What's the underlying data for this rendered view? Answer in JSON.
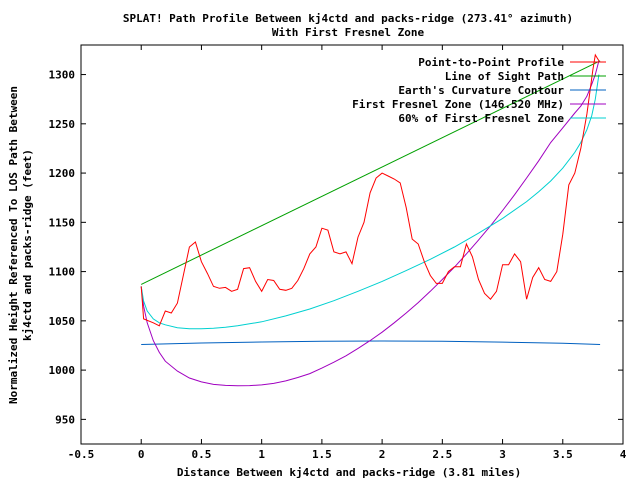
{
  "chart_data": {
    "type": "line",
    "title": "SPLAT! Path Profile Between kj4ctd and packs-ridge (273.41° azimuth)",
    "subtitle": "With First Fresnel Zone",
    "xlabel": "Distance Between kj4ctd and packs-ridge (3.81 miles)",
    "ylabel_line1": "Normalized Height Referenced To LOS Path Between",
    "ylabel_line2": "kj4ctd and packs-ridge (feet)",
    "xlim": [
      -0.5,
      4
    ],
    "ylim": [
      925,
      1330
    ],
    "x_ticks": [
      -0.5,
      0,
      0.5,
      1,
      1.5,
      2,
      2.5,
      3,
      3.5,
      4
    ],
    "x_tick_labels": [
      "-0.5",
      "0",
      "0.5",
      "1",
      "1.5",
      "2",
      "2.5",
      "3",
      "3.5",
      "4"
    ],
    "y_ticks": [
      950,
      1000,
      1050,
      1100,
      1150,
      1200,
      1250,
      1300
    ],
    "y_tick_labels": [
      "950",
      "1000",
      "1050",
      "1100",
      "1150",
      "1200",
      "1250",
      "1300"
    ],
    "grid": false,
    "legend_position": "top-right",
    "series": [
      {
        "name": "Point-to-Point Profile",
        "color": "#ff0000",
        "x": [
          0,
          0.02,
          0.1,
          0.15,
          0.2,
          0.25,
          0.3,
          0.4,
          0.45,
          0.5,
          0.55,
          0.6,
          0.65,
          0.7,
          0.75,
          0.8,
          0.85,
          0.9,
          0.95,
          1.0,
          1.05,
          1.1,
          1.15,
          1.2,
          1.25,
          1.3,
          1.35,
          1.4,
          1.45,
          1.5,
          1.55,
          1.6,
          1.65,
          1.7,
          1.75,
          1.8,
          1.85,
          1.9,
          1.95,
          2.0,
          2.05,
          2.1,
          2.15,
          2.2,
          2.25,
          2.3,
          2.35,
          2.4,
          2.45,
          2.5,
          2.55,
          2.6,
          2.65,
          2.7,
          2.75,
          2.8,
          2.85,
          2.9,
          2.95,
          3.0,
          3.05,
          3.1,
          3.15,
          3.2,
          3.25,
          3.3,
          3.35,
          3.4,
          3.45,
          3.5,
          3.55,
          3.6,
          3.65,
          3.7,
          3.75,
          3.77,
          3.8
        ],
        "values": [
          1085,
          1052,
          1048,
          1045,
          1060,
          1058,
          1068,
          1125,
          1130,
          1110,
          1098,
          1085,
          1083,
          1084,
          1080,
          1082,
          1103,
          1104,
          1090,
          1080,
          1092,
          1091,
          1082,
          1081,
          1083,
          1091,
          1103,
          1118,
          1125,
          1144,
          1142,
          1120,
          1118,
          1120,
          1108,
          1135,
          1150,
          1180,
          1195,
          1200,
          1197,
          1194,
          1190,
          1165,
          1133,
          1128,
          1110,
          1096,
          1088,
          1088,
          1100,
          1105,
          1105,
          1128,
          1115,
          1092,
          1078,
          1072,
          1080,
          1107,
          1107,
          1118,
          1110,
          1072,
          1094,
          1104,
          1092,
          1090,
          1100,
          1138,
          1188,
          1200,
          1225,
          1260,
          1305,
          1320,
          1314
        ]
      },
      {
        "name": "Line of Sight Path",
        "color": "#00a000",
        "x": [
          0,
          3.81
        ],
        "values": [
          1087,
          1314
        ]
      },
      {
        "name": "Earth's Curvature Contour",
        "color": "#0060c0",
        "x": [
          0,
          0.5,
          1.0,
          1.5,
          2.0,
          2.5,
          3.0,
          3.5,
          3.81
        ],
        "values": [
          1026,
          1027.5,
          1028.5,
          1029.2,
          1029.5,
          1029.2,
          1028.4,
          1027.2,
          1026
        ]
      },
      {
        "name": "First Fresnel Zone (146.520 MHz)",
        "color": "#a000c0",
        "x": [
          0,
          0.02,
          0.05,
          0.1,
          0.15,
          0.2,
          0.3,
          0.4,
          0.5,
          0.6,
          0.7,
          0.8,
          0.9,
          1.0,
          1.1,
          1.2,
          1.3,
          1.4,
          1.5,
          1.6,
          1.7,
          1.8,
          1.9,
          2.0,
          2.1,
          2.2,
          2.3,
          2.4,
          2.5,
          2.6,
          2.7,
          2.8,
          2.9,
          3.0,
          3.1,
          3.2,
          3.3,
          3.4,
          3.5,
          3.6,
          3.65,
          3.7,
          3.74,
          3.77,
          3.8
        ],
        "values": [
          1085,
          1065,
          1048,
          1030,
          1018,
          1009,
          999,
          992,
          988,
          985.5,
          984.5,
          984.2,
          984.3,
          985,
          986.5,
          989,
          992.5,
          996.5,
          1002,
          1008,
          1014.5,
          1022,
          1030,
          1038.5,
          1048,
          1058,
          1068.5,
          1080,
          1092,
          1104.5,
          1118,
          1132,
          1146.5,
          1162,
          1178,
          1195,
          1212.5,
          1231,
          1246,
          1261,
          1268,
          1278,
          1290,
          1300,
          1314
        ]
      },
      {
        "name": "60% of First Fresnel Zone",
        "color": "#00d0d0",
        "x": [
          0,
          0.02,
          0.05,
          0.1,
          0.15,
          0.2,
          0.3,
          0.4,
          0.5,
          0.6,
          0.7,
          0.8,
          0.9,
          1.0,
          1.2,
          1.4,
          1.6,
          1.8,
          2.0,
          2.2,
          2.4,
          2.6,
          2.8,
          3.0,
          3.2,
          3.3,
          3.4,
          3.5,
          3.6,
          3.65,
          3.7,
          3.74,
          3.77,
          3.8
        ],
        "values": [
          1085,
          1070,
          1060,
          1052,
          1048,
          1046,
          1043,
          1042,
          1042,
          1042.5,
          1043.5,
          1045,
          1047,
          1049,
          1055,
          1062,
          1070.5,
          1080,
          1090,
          1101,
          1112.5,
          1125,
          1139,
          1154,
          1171,
          1181,
          1192,
          1205,
          1221,
          1231,
          1244,
          1258,
          1275,
          1300
        ]
      }
    ]
  }
}
